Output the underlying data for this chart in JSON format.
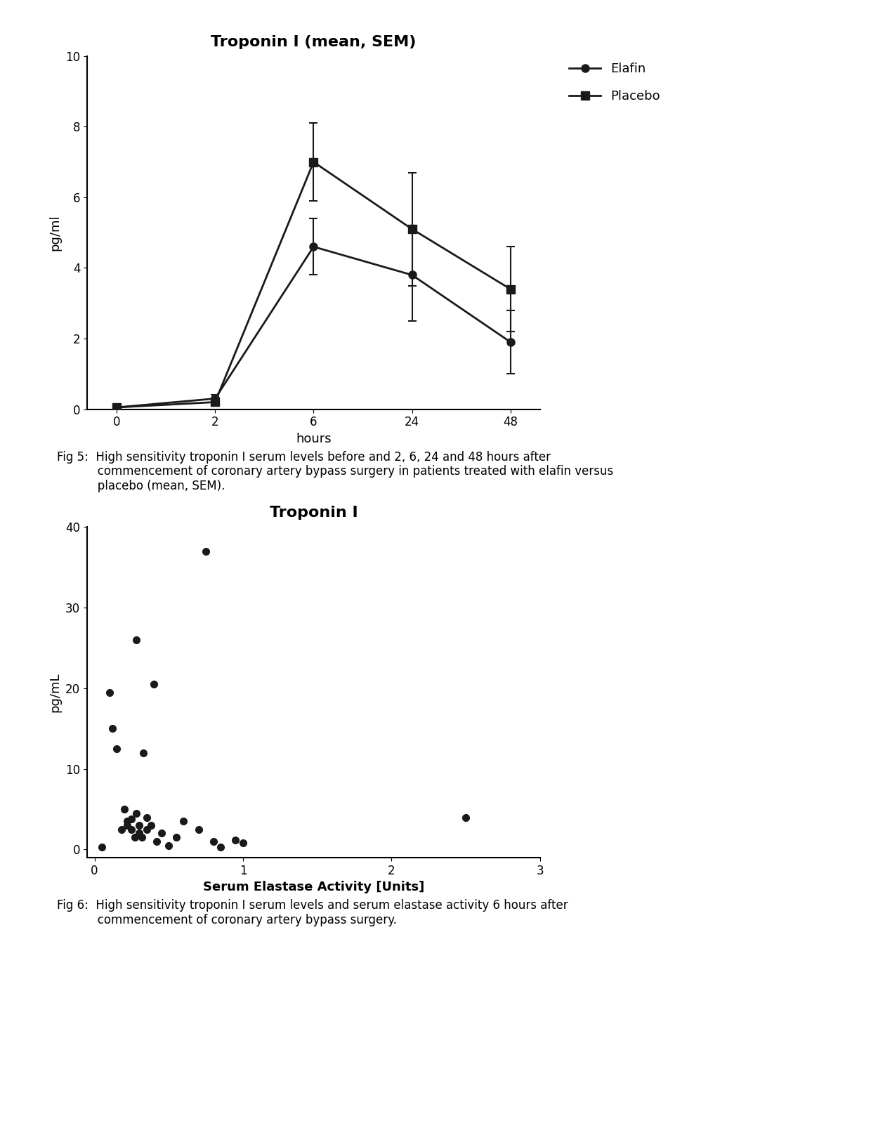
{
  "fig1": {
    "title": "Troponin I (mean, SEM)",
    "xlabel": "hours",
    "ylabel": "pg/ml",
    "ylim": [
      0,
      10
    ],
    "yticks": [
      0,
      2,
      4,
      6,
      8,
      10
    ],
    "xtick_positions": [
      0,
      1,
      2,
      3,
      4
    ],
    "xtick_labels": [
      "0",
      "2",
      "6",
      "24",
      "48"
    ],
    "elafin": {
      "x": [
        0,
        1,
        2,
        3,
        4
      ],
      "y": [
        0.05,
        0.3,
        4.6,
        3.8,
        1.9
      ],
      "yerr": [
        0.05,
        0.1,
        0.8,
        1.3,
        0.9
      ],
      "label": "Elafin",
      "color": "#1a1a1a",
      "marker": "o",
      "markersize": 8,
      "linewidth": 2
    },
    "placebo": {
      "x": [
        0,
        1,
        2,
        3,
        4
      ],
      "y": [
        0.05,
        0.2,
        7.0,
        5.1,
        3.4
      ],
      "yerr": [
        0.05,
        0.1,
        1.1,
        1.6,
        1.2
      ],
      "label": "Placebo",
      "color": "#1a1a1a",
      "marker": "s",
      "markersize": 8,
      "linewidth": 2
    },
    "legend_fontsize": 13,
    "xlim": [
      -0.3,
      4.3
    ]
  },
  "fig2": {
    "title": "Troponin I",
    "xlabel": "Serum Elastase Activity [Units]",
    "ylabel": "pg/mL",
    "xlim": [
      -0.05,
      3.0
    ],
    "ylim": [
      -1,
      40
    ],
    "yticks": [
      0,
      10,
      20,
      30,
      40
    ],
    "xticks": [
      0,
      1,
      2,
      3
    ],
    "scatter_x": [
      0.05,
      0.1,
      0.12,
      0.15,
      0.18,
      0.2,
      0.22,
      0.22,
      0.25,
      0.25,
      0.27,
      0.28,
      0.28,
      0.3,
      0.3,
      0.32,
      0.33,
      0.35,
      0.35,
      0.38,
      0.4,
      0.42,
      0.45,
      0.5,
      0.55,
      0.6,
      0.7,
      0.75,
      0.8,
      0.85,
      0.95,
      1.0,
      2.5
    ],
    "scatter_y": [
      0.3,
      19.5,
      15.0,
      12.5,
      2.5,
      5.0,
      3.0,
      3.5,
      2.5,
      3.8,
      1.5,
      4.5,
      26.0,
      2.0,
      3.0,
      1.5,
      12.0,
      2.5,
      4.0,
      3.0,
      20.5,
      1.0,
      2.0,
      0.5,
      1.5,
      3.5,
      2.5,
      37.0,
      1.0,
      0.3,
      1.2,
      0.8,
      4.0
    ],
    "color": "#1a1a1a",
    "markersize": 7
  },
  "background_color": "#ffffff",
  "text_color": "#000000",
  "title_fontsize": 16,
  "axis_fontsize": 13,
  "tick_fontsize": 12,
  "caption_fontsize": 12
}
